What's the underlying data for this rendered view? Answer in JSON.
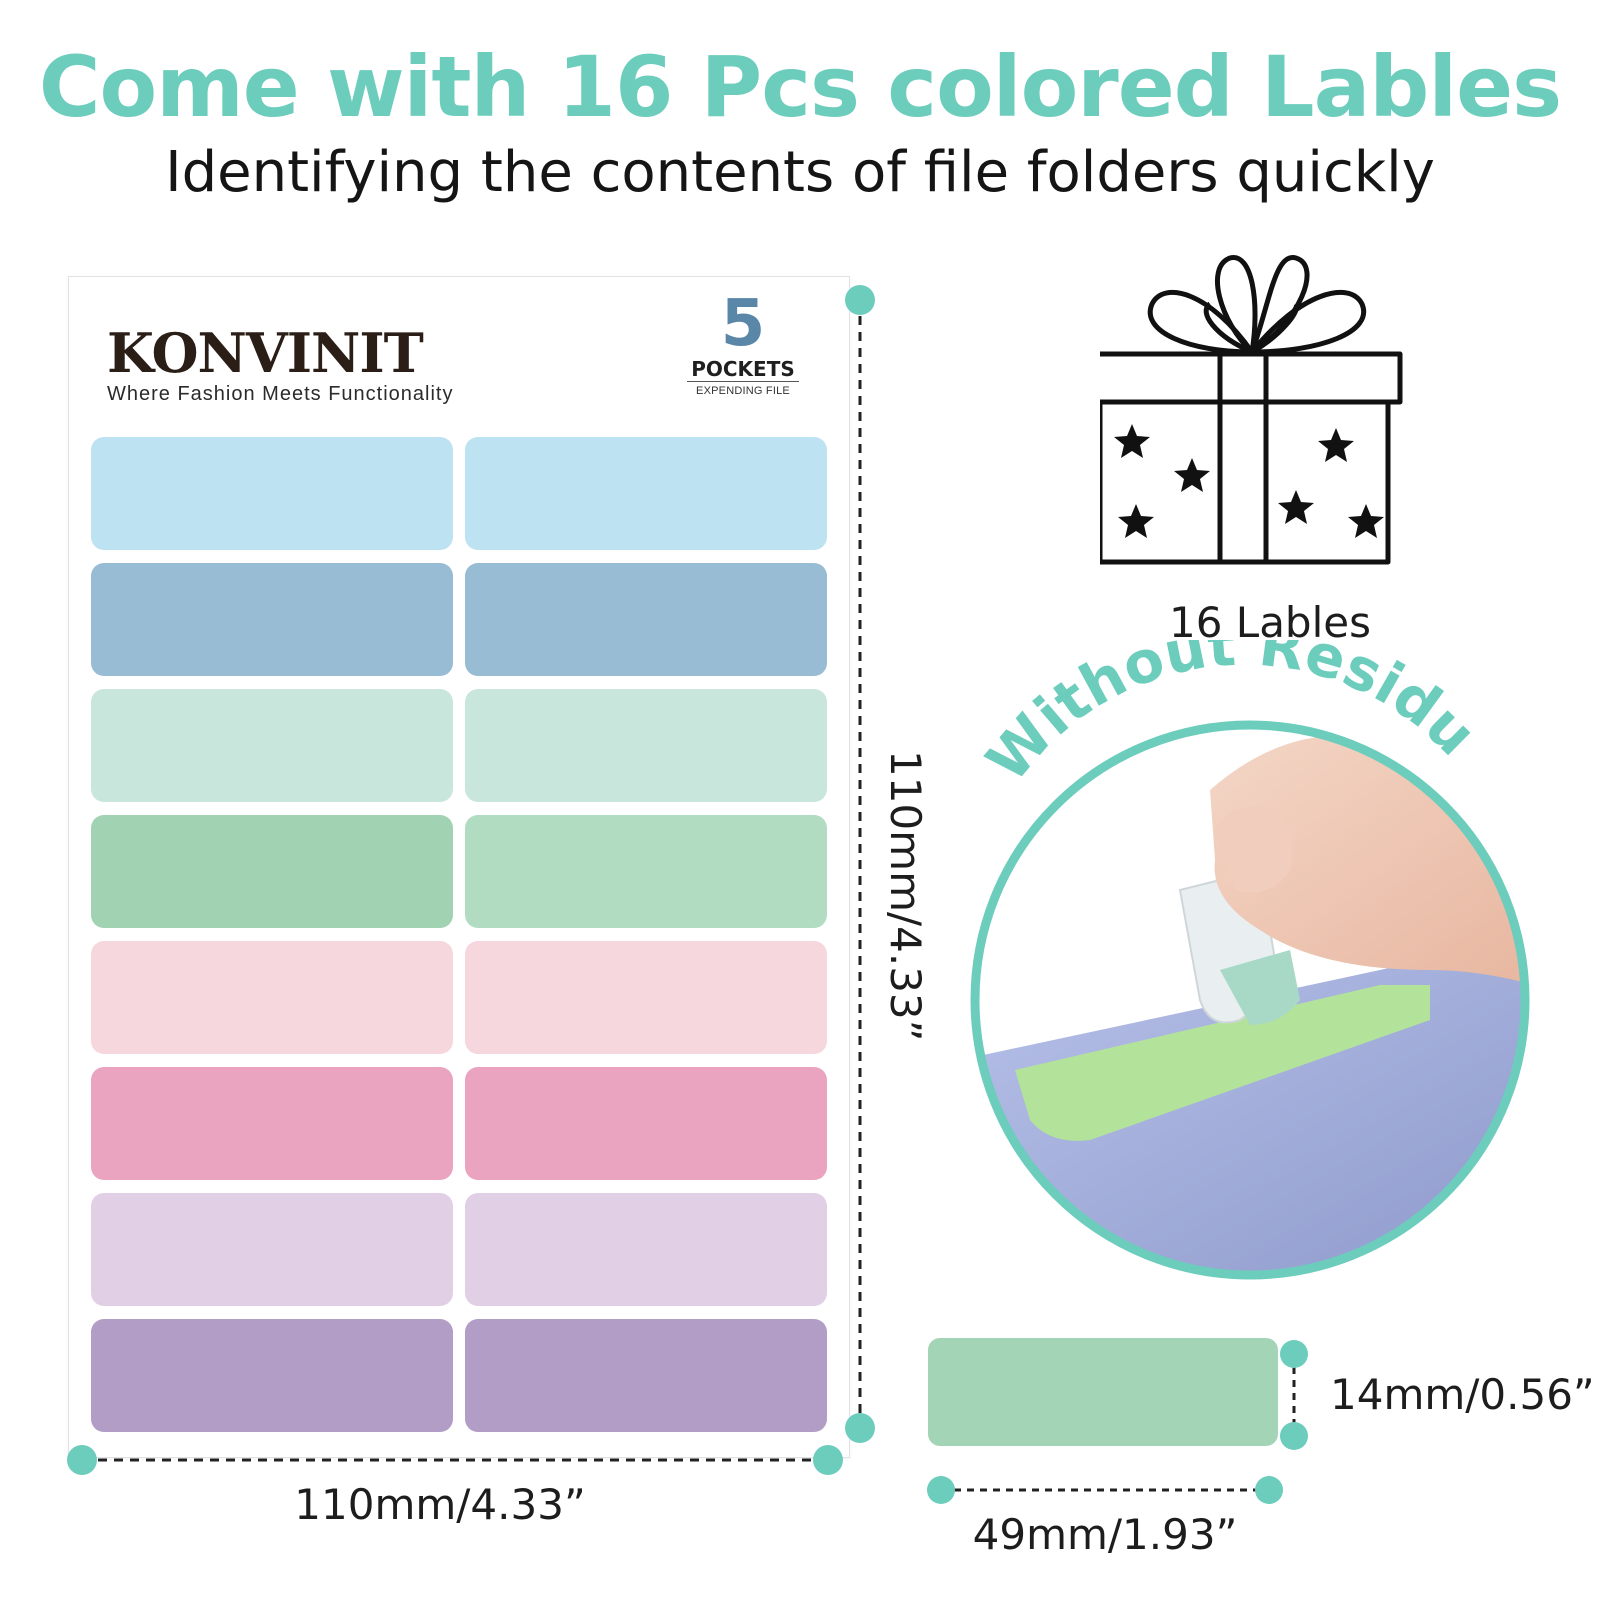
{
  "headline": "Come with 16 Pcs colored Lables",
  "subheadline": "Identifying the contents of file folders quickly",
  "sheet": {
    "brand": "KONVINIT",
    "tagline": "Where Fashion Meets Functionality",
    "pocket_number": "5",
    "pocket_word": "POCKETS",
    "pocket_sub": "EXPENDING FILE",
    "label_colors": [
      [
        "#bde2f1",
        "#bde2f1"
      ],
      [
        "#98bcd3",
        "#98bcd3"
      ],
      [
        "#c9e6dc",
        "#c9e6dc"
      ],
      [
        "#a1d3b3",
        "#b2dcc2"
      ],
      [
        "#f7d7de",
        "#f7d7de"
      ],
      [
        "#eaa4bf",
        "#eaa4bf"
      ],
      [
        "#e1cfe5",
        "#e1cfe5"
      ],
      [
        "#b19dc6",
        "#b19dc6"
      ]
    ]
  },
  "height_dimension": "110mm/4.33”",
  "width_dimension": "110mm/4.33”",
  "gift": {
    "icon": "gift-box-icon",
    "caption": "16 Lables"
  },
  "residue": {
    "text": "Without Residue",
    "accent": "#6ccdbd"
  },
  "label_size": {
    "color": "#a3d4b5",
    "height_text": "14mm/0.56”",
    "width_text": "49mm/1.93”"
  }
}
